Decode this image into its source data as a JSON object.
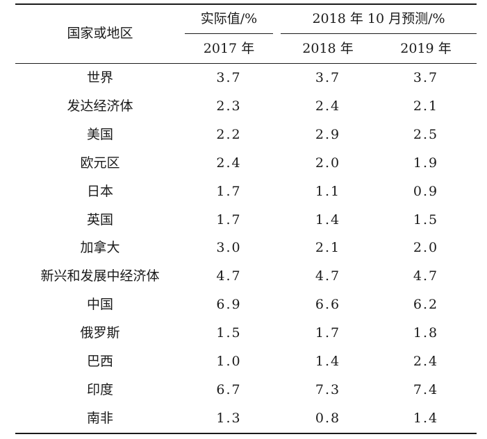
{
  "table": {
    "header": {
      "country_label": "国家或地区",
      "actual_label": "实际值/%",
      "forecast_label": "2018 年 10 月预测/%",
      "year_2017": "2017 年",
      "year_2018": "2018 年",
      "year_2019": "2019 年"
    },
    "rows": [
      {
        "name": "世界",
        "v2017": "3.7",
        "v2018": "3.7",
        "v2019": "3.7"
      },
      {
        "name": "发达经济体",
        "v2017": "2.3",
        "v2018": "2.4",
        "v2019": "2.1"
      },
      {
        "name": "美国",
        "v2017": "2.2",
        "v2018": "2.9",
        "v2019": "2.5"
      },
      {
        "name": "欧元区",
        "v2017": "2.4",
        "v2018": "2.0",
        "v2019": "1.9"
      },
      {
        "name": "日本",
        "v2017": "1.7",
        "v2018": "1.1",
        "v2019": "0.9"
      },
      {
        "name": "英国",
        "v2017": "1.7",
        "v2018": "1.4",
        "v2019": "1.5"
      },
      {
        "name": "加拿大",
        "v2017": "3.0",
        "v2018": "2.1",
        "v2019": "2.0"
      },
      {
        "name": "新兴和发展中经济体",
        "v2017": "4.7",
        "v2018": "4.7",
        "v2019": "4.7"
      },
      {
        "name": "中国",
        "v2017": "6.9",
        "v2018": "6.6",
        "v2019": "6.2"
      },
      {
        "name": "俄罗斯",
        "v2017": "1.5",
        "v2018": "1.7",
        "v2019": "1.8"
      },
      {
        "name": "巴西",
        "v2017": "1.0",
        "v2018": "1.4",
        "v2019": "2.4"
      },
      {
        "name": "印度",
        "v2017": "6.7",
        "v2018": "7.3",
        "v2019": "7.4"
      },
      {
        "name": "南非",
        "v2017": "1.3",
        "v2018": "0.8",
        "v2019": "1.4"
      }
    ]
  }
}
